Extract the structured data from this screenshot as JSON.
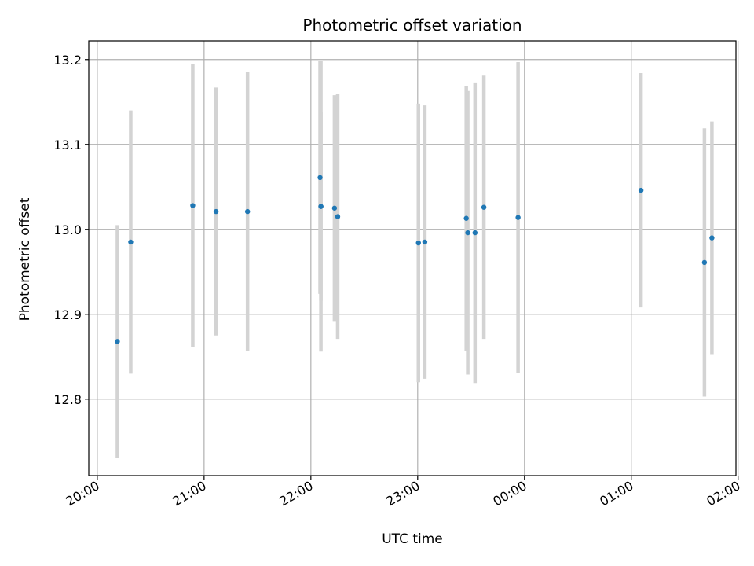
{
  "chart_data": {
    "type": "scatter",
    "title": "Photometric offset variation",
    "xlabel": "UTC time",
    "ylabel": "Photometric offset",
    "x_unit": "hours since 20:00 UTC",
    "xlim": [
      -0.08,
      5.98
    ],
    "ylim": [
      12.71,
      13.222
    ],
    "x_ticks": [
      0,
      1,
      2,
      3,
      4,
      5,
      6
    ],
    "x_tick_labels": [
      "20:00",
      "21:00",
      "22:00",
      "23:00",
      "00:00",
      "01:00",
      "02:00"
    ],
    "y_ticks": [
      12.8,
      12.9,
      13.0,
      13.1,
      13.2
    ],
    "y_tick_labels": [
      "12.8",
      "12.9",
      "13.0",
      "13.1",
      "13.2"
    ],
    "grid": true,
    "point_color": "#1f77b4",
    "errorbar_color": "#d3d3d3",
    "points": [
      {
        "x": 0.188,
        "y": 12.868,
        "err": 0.137
      },
      {
        "x": 0.313,
        "y": 12.985,
        "err": 0.155
      },
      {
        "x": 0.894,
        "y": 13.028,
        "err": 0.167
      },
      {
        "x": 1.112,
        "y": 13.021,
        "err": 0.146
      },
      {
        "x": 1.407,
        "y": 13.021,
        "err": 0.164
      },
      {
        "x": 2.086,
        "y": 13.061,
        "err": 0.137
      },
      {
        "x": 2.094,
        "y": 13.027,
        "err": 0.111
      },
      {
        "x": 2.094,
        "y": 13.027,
        "err": 0.171
      },
      {
        "x": 2.221,
        "y": 13.025,
        "err": 0.133
      },
      {
        "x": 2.251,
        "y": 13.015,
        "err": 0.144
      },
      {
        "x": 3.007,
        "y": 12.984,
        "err": 0.164
      },
      {
        "x": 3.067,
        "y": 12.985,
        "err": 0.161
      },
      {
        "x": 3.455,
        "y": 13.013,
        "err": 0.156
      },
      {
        "x": 3.469,
        "y": 12.996,
        "err": 0.167
      },
      {
        "x": 3.537,
        "y": 12.996,
        "err": 0.177
      },
      {
        "x": 3.62,
        "y": 13.026,
        "err": 0.155
      },
      {
        "x": 3.94,
        "y": 13.014,
        "err": 0.183
      },
      {
        "x": 5.091,
        "y": 13.046,
        "err": 0.138
      },
      {
        "x": 5.685,
        "y": 12.961,
        "err": 0.158
      },
      {
        "x": 5.755,
        "y": 12.99,
        "err": 0.137
      }
    ]
  }
}
